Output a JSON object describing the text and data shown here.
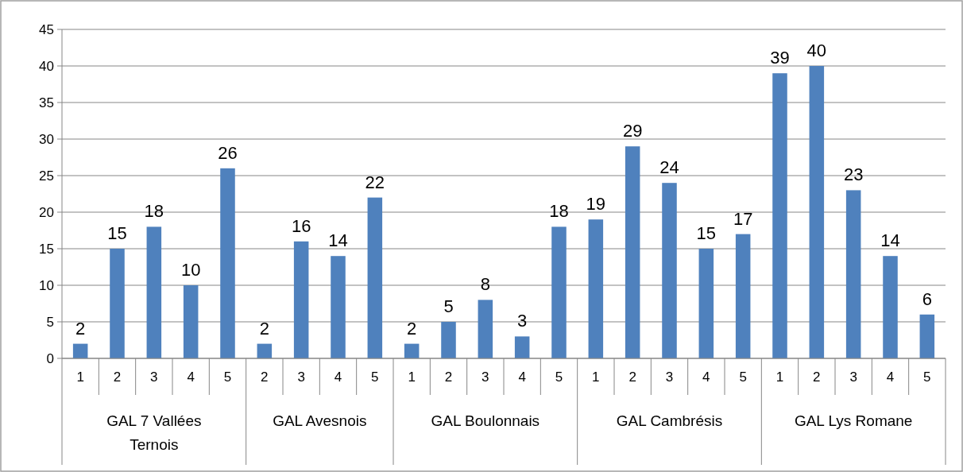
{
  "chart_data": {
    "type": "bar",
    "categories": [
      "1",
      "2",
      "3",
      "4",
      "5",
      "2",
      "3",
      "4",
      "5",
      "1",
      "2",
      "3",
      "4",
      "5",
      "1",
      "2",
      "3",
      "4",
      "5",
      "1",
      "2",
      "3",
      "4",
      "5"
    ],
    "values": [
      2,
      15,
      18,
      10,
      26,
      2,
      16,
      14,
      22,
      2,
      5,
      8,
      3,
      18,
      19,
      29,
      24,
      15,
      17,
      39,
      40,
      23,
      14,
      6
    ],
    "color": "#4f81bd",
    "ylim": [
      0,
      45
    ],
    "yticks": [
      0,
      5,
      10,
      15,
      20,
      25,
      30,
      35,
      40,
      45
    ],
    "grid": "y",
    "data_labels": true,
    "annotations": [
      "GAL 7 Vallées Ternois",
      "GAL Avesnois",
      "GAL Boulonnais",
      "GAL Cambrésis",
      "GAL Lys Romane"
    ]
  }
}
